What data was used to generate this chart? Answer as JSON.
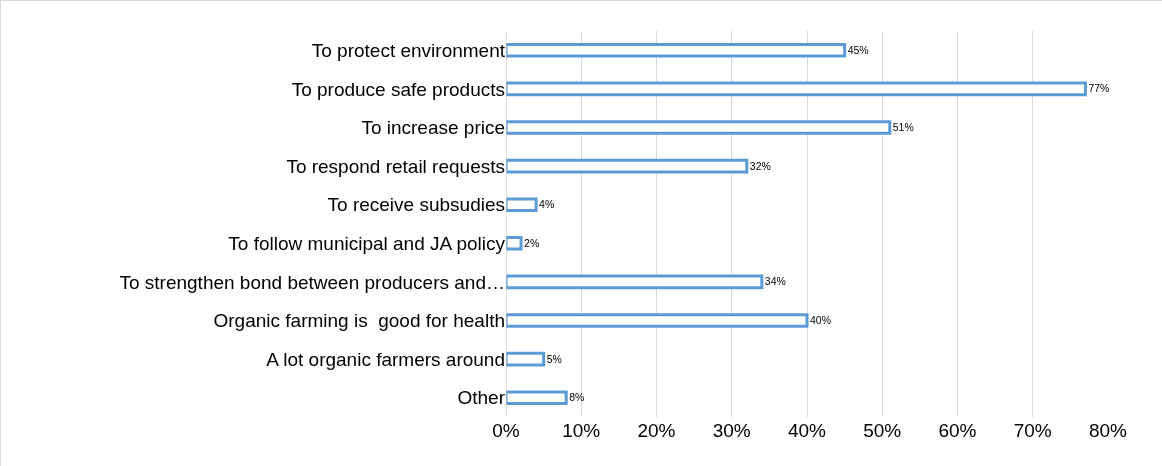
{
  "chart_data": {
    "type": "bar",
    "orientation": "horizontal",
    "categories": [
      "To protect environment",
      "To produce safe products",
      "To increase price",
      "To respond retail requests",
      "To receive subsudies",
      "To follow municipal and JA policy",
      "To strengthen bond between producers and…",
      "Organic farming is  good for health",
      "A lot organic farmers around",
      "Other"
    ],
    "values": [
      45,
      77,
      51,
      32,
      4,
      2,
      34,
      40,
      5,
      8
    ],
    "value_labels": [
      "45%",
      "77%",
      "51%",
      "32%",
      "4%",
      "2%",
      "34%",
      "40%",
      "5%",
      "8%"
    ],
    "color": "#5b9bd5",
    "xlim": [
      0,
      80
    ],
    "xticks": [
      {
        "value": 0,
        "label": "0%"
      },
      {
        "value": 10,
        "label": "10%"
      },
      {
        "value": 20,
        "label": "20%"
      },
      {
        "value": 30,
        "label": "30%"
      },
      {
        "value": 40,
        "label": "40%"
      },
      {
        "value": 50,
        "label": "50%"
      },
      {
        "value": 60,
        "label": "60%"
      },
      {
        "value": 70,
        "label": "70%"
      },
      {
        "value": 80,
        "label": "80%"
      }
    ],
    "grid": "x",
    "legend": false
  }
}
